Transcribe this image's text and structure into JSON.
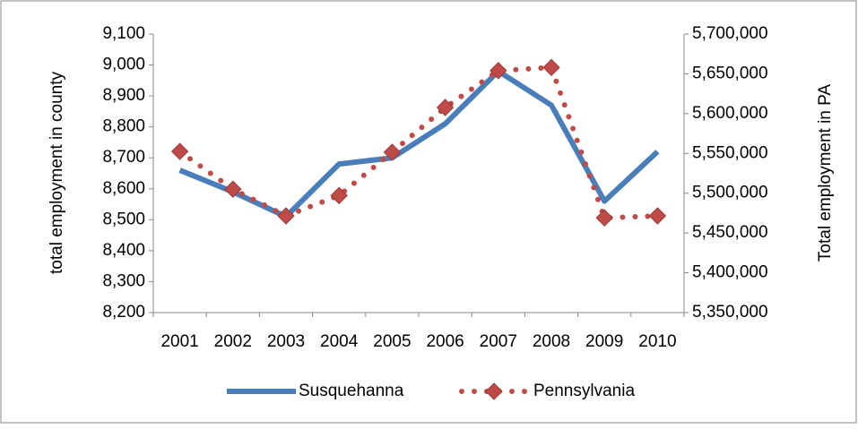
{
  "chart_data": {
    "type": "line",
    "categories": [
      "2001",
      "2002",
      "2003",
      "2004",
      "2005",
      "2006",
      "2007",
      "2008",
      "2009",
      "2010"
    ],
    "y_label": "total employment in county",
    "y2_label": "Total employment in PA",
    "ylim": [
      8200,
      9100
    ],
    "yticks": [
      {
        "value": 8200,
        "label": "8,200"
      },
      {
        "value": 8300,
        "label": "8,300"
      },
      {
        "value": 8400,
        "label": "8,400"
      },
      {
        "value": 8500,
        "label": "8,500"
      },
      {
        "value": 8600,
        "label": "8,600"
      },
      {
        "value": 8700,
        "label": "8,700"
      },
      {
        "value": 8800,
        "label": "8,800"
      },
      {
        "value": 8900,
        "label": "8,900"
      },
      {
        "value": 9000,
        "label": "9,000"
      },
      {
        "value": 9100,
        "label": "9,100"
      }
    ],
    "y2lim": [
      5350000,
      5700000
    ],
    "y2ticks": [
      {
        "value": 5350000,
        "label": "5,350,000"
      },
      {
        "value": 5400000,
        "label": "5,400,000"
      },
      {
        "value": 5450000,
        "label": "5,450,000"
      },
      {
        "value": 5500000,
        "label": "5,500,000"
      },
      {
        "value": 5550000,
        "label": "5,550,000"
      },
      {
        "value": 5600000,
        "label": "5,600,000"
      },
      {
        "value": 5650000,
        "label": "5,650,000"
      },
      {
        "value": 5700000,
        "label": "5,700,000"
      }
    ],
    "series": [
      {
        "name": "Susquehanna",
        "color": "#4a7ebb",
        "values": [
          8660,
          8590,
          8510,
          8680,
          8700,
          8810,
          8980,
          8870,
          8560,
          8720
        ]
      },
      {
        "name": "Pennsylvania",
        "color": "#be4b48",
        "axis": "y2",
        "values": [
          5552500,
          5505000,
          5471500,
          5497000,
          5551500,
          5607700,
          5654000,
          5658000,
          5469000,
          5471500
        ]
      }
    ],
    "legend": "bottom"
  }
}
